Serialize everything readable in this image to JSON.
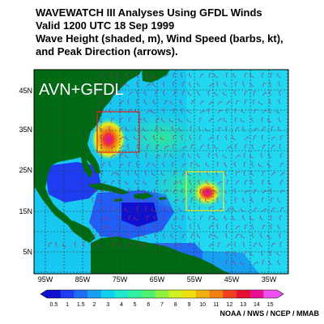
{
  "title": {
    "line1": "WAVEWATCH III Analyses Using GFDL Winds",
    "line2": "Valid 1200 UTC  18 Sep 1999",
    "line3": "Wave Height (shaded, m), Wind Speed (barbs, kt),",
    "line4": "and Peak Direction (arrows)."
  },
  "map_label": "AVN+GFDL",
  "lat_labels": [
    "45N",
    "35N",
    "25N",
    "15N",
    "5N"
  ],
  "lon_labels": [
    "95W",
    "85W",
    "75W",
    "65W",
    "55W",
    "45W",
    "35W"
  ],
  "colorbar": {
    "ticks": [
      "0.5",
      "1",
      "1.5",
      "2",
      "3",
      "4",
      "5",
      "6",
      "7",
      "8",
      "9",
      "10",
      "11",
      "12",
      "13",
      "14",
      "15"
    ],
    "colors": [
      "#1010d0",
      "#1e3cf0",
      "#1f6cf5",
      "#18a0f0",
      "#10d0f0",
      "#20e8d0",
      "#30f0a0",
      "#50f070",
      "#90f040",
      "#d0f020",
      "#f0e010",
      "#f0b010",
      "#f08010",
      "#f04020",
      "#e81030",
      "#e81090",
      "#f050f0"
    ]
  },
  "credit": "NOAA / NWS / NCEP / MMAB",
  "colors": {
    "land": "#006a14",
    "ocean": "#18c8f0",
    "grid": "#333333",
    "box_red": "#e02020",
    "box_yellow": "#f0f020"
  }
}
